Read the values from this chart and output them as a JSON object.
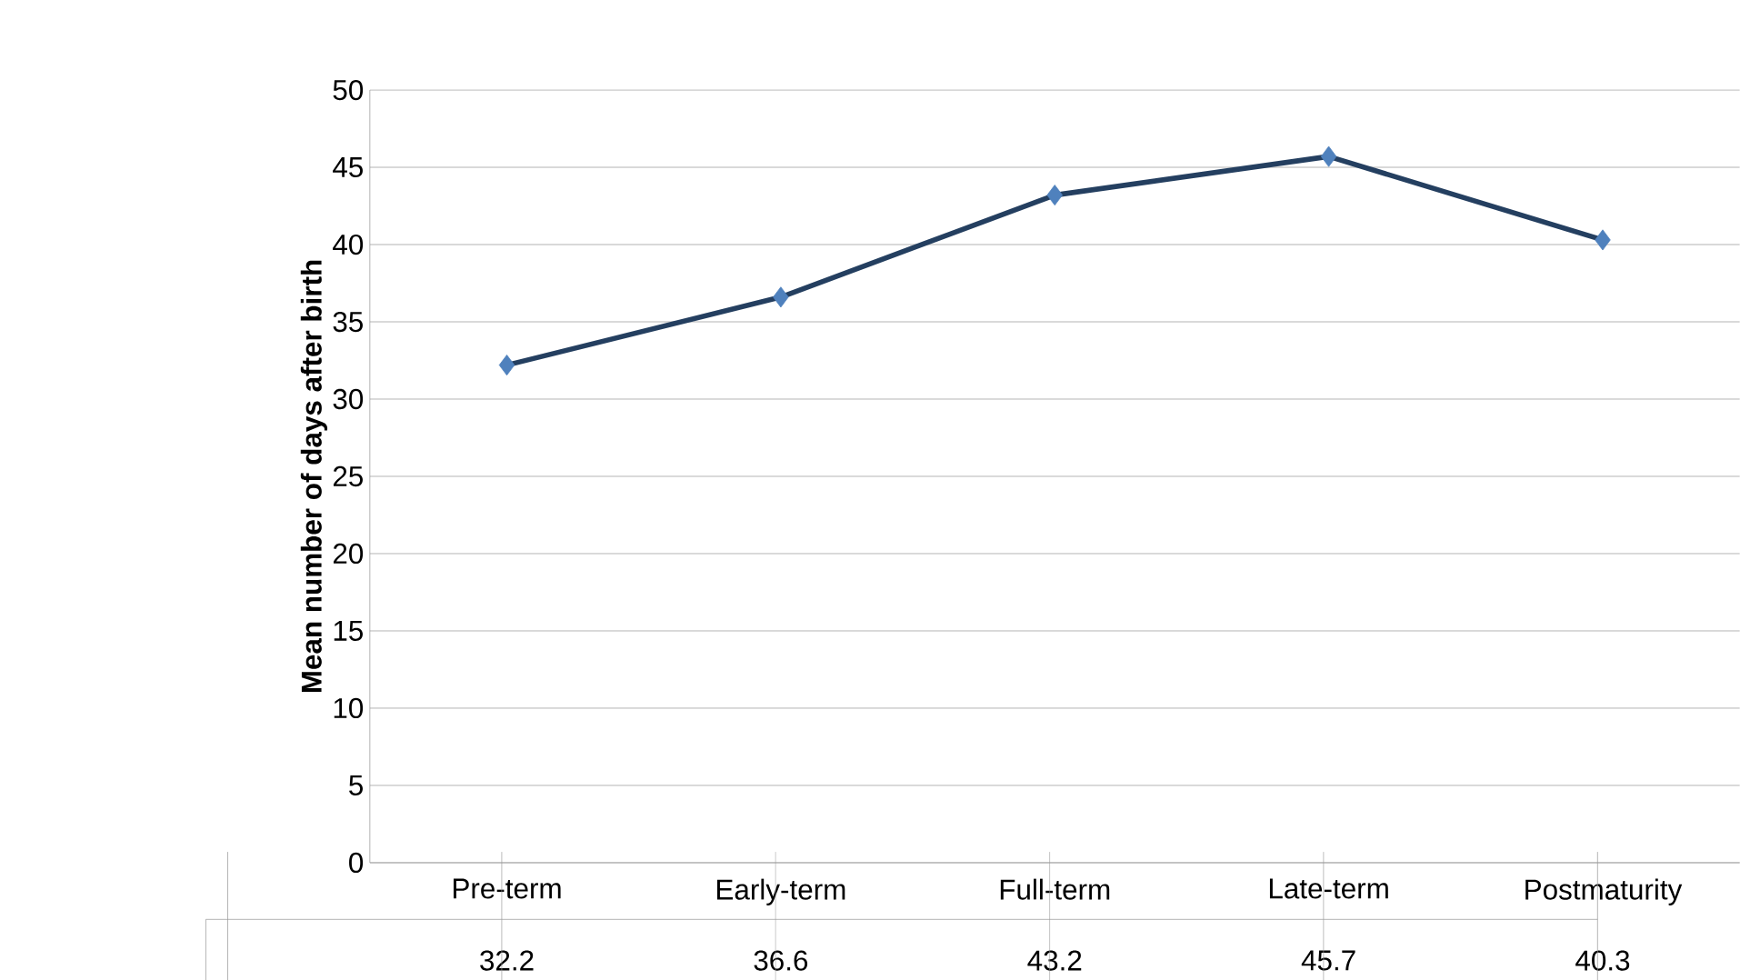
{
  "chart_data": {
    "type": "line",
    "ylabel": "Mean number of days after birth",
    "categories": [
      "Pre-term",
      "Early-term",
      "Full-term",
      "Late-term",
      "Postmaturity"
    ],
    "values": [
      32.2,
      36.6,
      43.2,
      45.7,
      40.3
    ],
    "color": "#243f60",
    "colors": [
      "#4f81bd",
      "#4f81bd",
      "#4f81bd",
      "#4f81bd",
      "#4f81bd"
    ],
    "ylim": [
      0,
      50
    ],
    "yticks": [
      0,
      5,
      10,
      15,
      20,
      25,
      30,
      35,
      40,
      45,
      50
    ],
    "grid": "y",
    "marker": "diamond",
    "line_style": "solid",
    "data_labels": true
  }
}
